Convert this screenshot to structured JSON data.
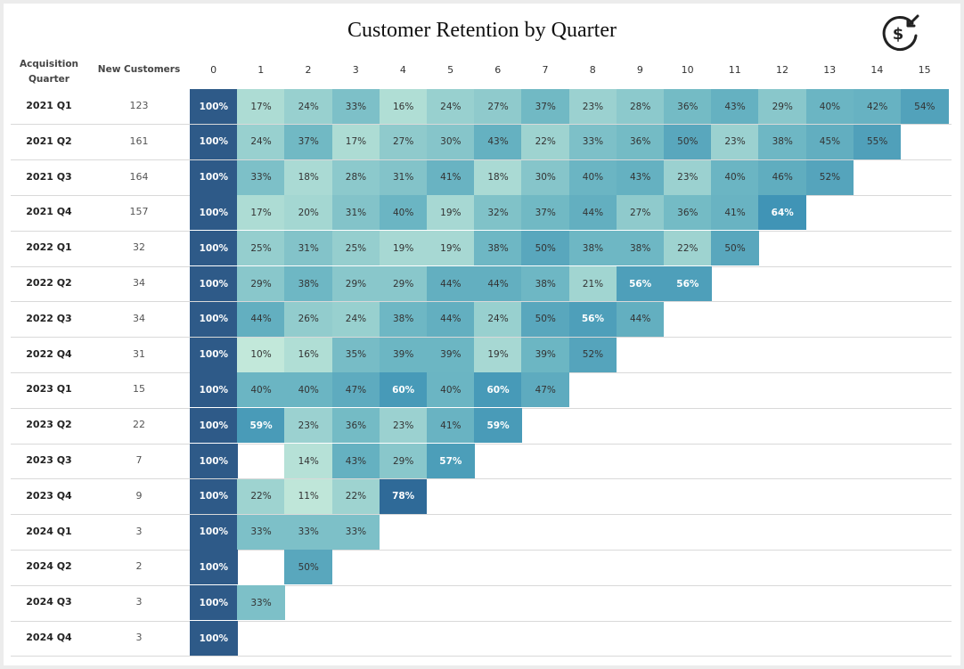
{
  "title": "Customer Retention by Quarter",
  "icons": {
    "logo": "dollar-refund-icon"
  },
  "chart_data": {
    "type": "heatmap",
    "title": "Customer Retention by Quarter",
    "row_header": "Acquisition Quarter",
    "count_header": "New Customers",
    "columns": [
      "0",
      "1",
      "2",
      "3",
      "4",
      "5",
      "6",
      "7",
      "8",
      "9",
      "10",
      "11",
      "12",
      "13",
      "14",
      "15"
    ],
    "rows": [
      {
        "quarter": "2021 Q1",
        "new_customers": "123",
        "values": [
          100,
          17,
          24,
          33,
          16,
          24,
          27,
          37,
          23,
          28,
          36,
          43,
          29,
          40,
          42,
          54
        ]
      },
      {
        "quarter": "2021 Q2",
        "new_customers": "161",
        "values": [
          100,
          24,
          37,
          17,
          27,
          30,
          43,
          22,
          33,
          36,
          50,
          23,
          38,
          45,
          55
        ]
      },
      {
        "quarter": "2021 Q3",
        "new_customers": "164",
        "values": [
          100,
          33,
          18,
          28,
          31,
          41,
          18,
          30,
          40,
          43,
          23,
          40,
          46,
          52
        ]
      },
      {
        "quarter": "2021 Q4",
        "new_customers": "157",
        "values": [
          100,
          17,
          20,
          31,
          40,
          19,
          32,
          37,
          44,
          27,
          36,
          41,
          64
        ]
      },
      {
        "quarter": "2022 Q1",
        "new_customers": "32",
        "values": [
          100,
          25,
          31,
          25,
          19,
          19,
          38,
          50,
          38,
          38,
          22,
          50
        ]
      },
      {
        "quarter": "2022 Q2",
        "new_customers": "34",
        "values": [
          100,
          29,
          38,
          29,
          29,
          44,
          44,
          38,
          21,
          56,
          56
        ]
      },
      {
        "quarter": "2022 Q3",
        "new_customers": "34",
        "values": [
          100,
          44,
          26,
          24,
          38,
          44,
          24,
          50,
          56,
          44
        ]
      },
      {
        "quarter": "2022 Q4",
        "new_customers": "31",
        "values": [
          100,
          10,
          16,
          35,
          39,
          39,
          19,
          39,
          52
        ]
      },
      {
        "quarter": "2023 Q1",
        "new_customers": "15",
        "values": [
          100,
          40,
          40,
          47,
          60,
          40,
          60,
          47
        ]
      },
      {
        "quarter": "2023 Q2",
        "new_customers": "22",
        "values": [
          100,
          59,
          23,
          36,
          23,
          41,
          59
        ]
      },
      {
        "quarter": "2023 Q3",
        "new_customers": "7",
        "values": [
          100,
          null,
          14,
          43,
          29,
          57
        ]
      },
      {
        "quarter": "2023 Q4",
        "new_customers": "9",
        "values": [
          100,
          22,
          11,
          22,
          78
        ]
      },
      {
        "quarter": "2024 Q1",
        "new_customers": "3",
        "values": [
          100,
          33,
          33,
          33
        ]
      },
      {
        "quarter": "2024 Q2",
        "new_customers": "2",
        "values": [
          100,
          null,
          50
        ]
      },
      {
        "quarter": "2024 Q3",
        "new_customers": "3",
        "values": [
          100,
          33
        ]
      },
      {
        "quarter": "2024 Q4",
        "new_customers": "3",
        "values": [
          100
        ]
      }
    ],
    "unit": "%",
    "color_scale": {
      "min": "#c2e8da",
      "mid": "#6fb8c4",
      "max": "#3e93b5",
      "full": "#2e5a88"
    }
  }
}
